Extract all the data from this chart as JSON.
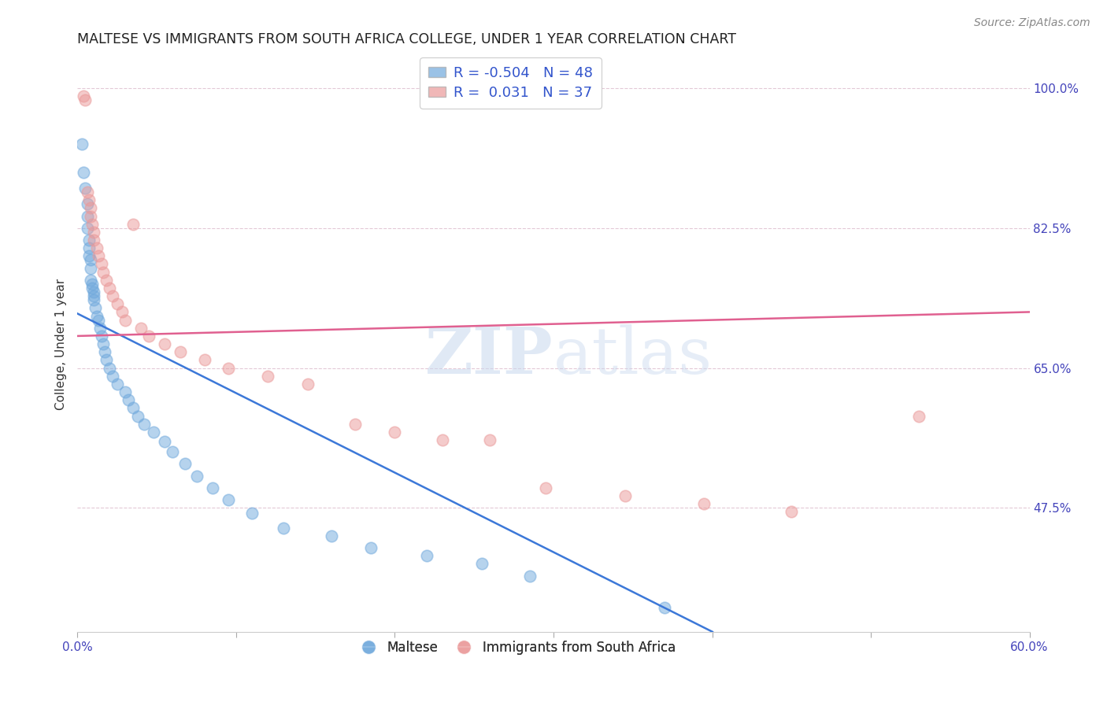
{
  "title": "MALTESE VS IMMIGRANTS FROM SOUTH AFRICA COLLEGE, UNDER 1 YEAR CORRELATION CHART",
  "source": "Source: ZipAtlas.com",
  "ylabel": "College, Under 1 year",
  "xlim": [
    0.0,
    0.6
  ],
  "ylim": [
    0.32,
    1.04
  ],
  "xticks": [
    0.0,
    0.1,
    0.2,
    0.3,
    0.4,
    0.5,
    0.6
  ],
  "xticklabels": [
    "0.0%",
    "",
    "",
    "",
    "",
    "",
    "60.0%"
  ],
  "yticks": [
    0.475,
    0.65,
    0.825,
    1.0
  ],
  "yticklabels": [
    "47.5%",
    "65.0%",
    "82.5%",
    "100.0%"
  ],
  "legend_blue_label": "Maltese",
  "legend_pink_label": "Immigrants from South Africa",
  "r_blue": "-0.504",
  "n_blue": "48",
  "r_pink": "0.031",
  "n_pink": "37",
  "blue_color": "#6fa8dc",
  "pink_color": "#ea9999",
  "blue_line_color": "#3c78d8",
  "pink_line_color": "#e06090",
  "watermark_zip": "ZIP",
  "watermark_atlas": "atlas",
  "blue_x": [
    0.003,
    0.004,
    0.005,
    0.006,
    0.006,
    0.006,
    0.007,
    0.007,
    0.007,
    0.008,
    0.008,
    0.008,
    0.009,
    0.009,
    0.01,
    0.01,
    0.01,
    0.011,
    0.012,
    0.013,
    0.014,
    0.015,
    0.016,
    0.017,
    0.018,
    0.02,
    0.022,
    0.025,
    0.03,
    0.032,
    0.035,
    0.038,
    0.042,
    0.048,
    0.055,
    0.06,
    0.068,
    0.075,
    0.085,
    0.095,
    0.11,
    0.13,
    0.16,
    0.185,
    0.22,
    0.255,
    0.285,
    0.37
  ],
  "blue_y": [
    0.93,
    0.895,
    0.875,
    0.855,
    0.84,
    0.825,
    0.81,
    0.8,
    0.79,
    0.785,
    0.775,
    0.76,
    0.755,
    0.75,
    0.745,
    0.74,
    0.735,
    0.725,
    0.715,
    0.71,
    0.7,
    0.69,
    0.68,
    0.67,
    0.66,
    0.65,
    0.64,
    0.63,
    0.62,
    0.61,
    0.6,
    0.59,
    0.58,
    0.57,
    0.558,
    0.545,
    0.53,
    0.515,
    0.5,
    0.485,
    0.468,
    0.45,
    0.44,
    0.425,
    0.415,
    0.405,
    0.39,
    0.35
  ],
  "pink_x": [
    0.004,
    0.005,
    0.006,
    0.007,
    0.008,
    0.008,
    0.009,
    0.01,
    0.01,
    0.012,
    0.013,
    0.015,
    0.016,
    0.018,
    0.02,
    0.022,
    0.025,
    0.028,
    0.03,
    0.035,
    0.04,
    0.045,
    0.055,
    0.065,
    0.08,
    0.095,
    0.12,
    0.145,
    0.175,
    0.2,
    0.23,
    0.26,
    0.295,
    0.345,
    0.395,
    0.45,
    0.53
  ],
  "pink_y": [
    0.99,
    0.985,
    0.87,
    0.86,
    0.85,
    0.84,
    0.83,
    0.82,
    0.81,
    0.8,
    0.79,
    0.78,
    0.77,
    0.76,
    0.75,
    0.74,
    0.73,
    0.72,
    0.71,
    0.83,
    0.7,
    0.69,
    0.68,
    0.67,
    0.66,
    0.65,
    0.64,
    0.63,
    0.58,
    0.57,
    0.56,
    0.56,
    0.5,
    0.49,
    0.48,
    0.47,
    0.59
  ],
  "blue_line_x": [
    0.0,
    0.37
  ],
  "blue_line_y": [
    0.718,
    0.35
  ],
  "pink_line_x": [
    0.0,
    0.6
  ],
  "pink_line_y": [
    0.69,
    0.72
  ]
}
